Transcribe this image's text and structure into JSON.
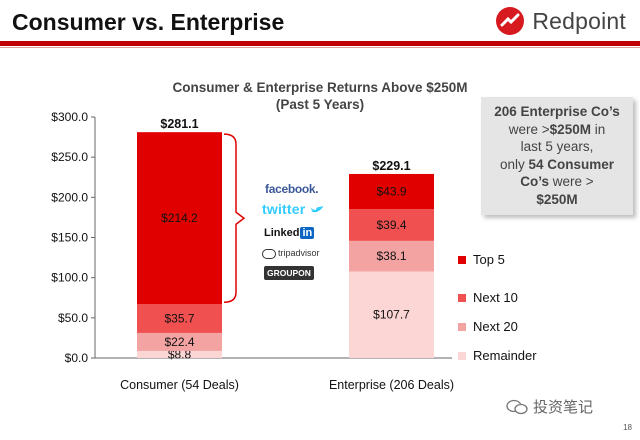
{
  "header": {
    "title": "Consumer vs. Enterprise",
    "brand": "Redpoint",
    "brand_color": "#d71920"
  },
  "chart_data": {
    "type": "bar",
    "stacked": true,
    "title": "Consumer & Enterprise Returns Above $250M",
    "subtitle": "(Past 5 Years)",
    "categories": [
      "Consumer (54 Deals)",
      "Enterprise (206 Deals)"
    ],
    "ylim": [
      0,
      300
    ],
    "y_ticks": [
      0,
      50,
      100,
      150,
      200,
      250,
      300
    ],
    "y_tick_labels": [
      "$0.0",
      "$50.0",
      "$100.0",
      "$150.0",
      "$200.0",
      "$250.0",
      "$300.0"
    ],
    "series": [
      {
        "name": "Remainder",
        "color": "#fcd5d5",
        "values": [
          8.8,
          107.7
        ],
        "labels": [
          "$8.8",
          "$107.7"
        ]
      },
      {
        "name": "Next 20",
        "color": "#f4a3a3",
        "values": [
          22.4,
          38.1
        ],
        "labels": [
          "$22.4",
          "$38.1"
        ]
      },
      {
        "name": "Next 10",
        "color": "#f05050",
        "values": [
          35.7,
          39.4
        ],
        "labels": [
          "$35.7",
          "$39.4"
        ]
      },
      {
        "name": "Top 5",
        "color": "#e00000",
        "values": [
          214.2,
          43.9
        ],
        "labels": [
          "$214.2",
          "$43.9"
        ]
      }
    ],
    "totals": [
      281.1,
      229.1
    ],
    "total_labels": [
      "$281.1",
      "$229.1"
    ],
    "legend": [
      "Top 5",
      "Next 10",
      "Next 20",
      "Remainder"
    ],
    "legend_position": "right"
  },
  "callout": {
    "count_enterprise": "206 Enterprise Co’s",
    "line2_pre": "were >",
    "threshold": "$250M",
    "line2_post": " in",
    "line3": "last 5 years,",
    "line4_pre": "only ",
    "count_consumer": "54 Consumer",
    "line5_pre": "Co’s",
    "line5_post": " were  >",
    "threshold2": "$250M"
  },
  "consumer_logos": [
    "facebook.",
    "twitter",
    "Linked",
    "in",
    "tripadvisor",
    "GROUPON"
  ],
  "footer": {
    "page_number": "18",
    "watermark": "投资笔记"
  }
}
